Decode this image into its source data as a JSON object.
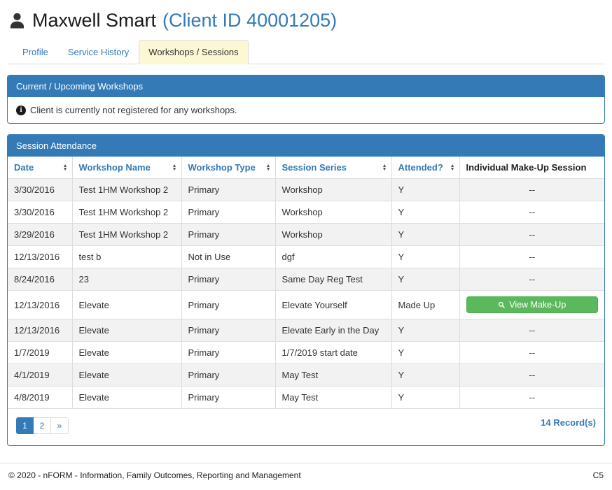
{
  "header": {
    "name": "Maxwell Smart",
    "client_id": "(Client ID 40001205)"
  },
  "tabs": [
    {
      "label": "Profile",
      "active": false
    },
    {
      "label": "Service History",
      "active": false
    },
    {
      "label": "Workshops / Sessions",
      "active": true
    }
  ],
  "workshops_panel": {
    "title": "Current / Upcoming Workshops",
    "message": "Client is currently not registered for any workshops."
  },
  "attendance_panel": {
    "title": "Session Attendance",
    "columns": [
      {
        "label": "Date",
        "sortable": true
      },
      {
        "label": "Workshop Name",
        "sortable": true
      },
      {
        "label": "Workshop Type",
        "sortable": true
      },
      {
        "label": "Session Series",
        "sortable": true
      },
      {
        "label": "Attended?",
        "sortable": true
      },
      {
        "label": "Individual Make-Up Session",
        "sortable": false
      }
    ],
    "rows": [
      {
        "date": "3/30/2016",
        "workshop_name": "Test 1HM Workshop 2",
        "workshop_type": "Primary",
        "session_series": "Workshop",
        "attended": "Y",
        "makeup": "--"
      },
      {
        "date": "3/30/2016",
        "workshop_name": "Test 1HM Workshop 2",
        "workshop_type": "Primary",
        "session_series": "Workshop",
        "attended": "Y",
        "makeup": "--"
      },
      {
        "date": "3/29/2016",
        "workshop_name": "Test 1HM Workshop 2",
        "workshop_type": "Primary",
        "session_series": "Workshop",
        "attended": "Y",
        "makeup": "--"
      },
      {
        "date": "12/13/2016",
        "workshop_name": "test b",
        "workshop_type": "Not in Use",
        "session_series": "dgf",
        "attended": "Y",
        "makeup": "--"
      },
      {
        "date": "8/24/2016",
        "workshop_name": "23",
        "workshop_type": "Primary",
        "session_series": "Same Day Reg Test",
        "attended": "Y",
        "makeup": "--"
      },
      {
        "date": "12/13/2016",
        "workshop_name": "Elevate",
        "workshop_type": "Primary",
        "session_series": "Elevate Yourself",
        "attended": "Made Up",
        "makeup": "view"
      },
      {
        "date": "12/13/2016",
        "workshop_name": "Elevate",
        "workshop_type": "Primary",
        "session_series": "Elevate Early in the Day",
        "attended": "Y",
        "makeup": "--"
      },
      {
        "date": "1/7/2019",
        "workshop_name": "Elevate",
        "workshop_type": "Primary",
        "session_series": "1/7/2019 start date",
        "attended": "Y",
        "makeup": "--"
      },
      {
        "date": "4/1/2019",
        "workshop_name": "Elevate",
        "workshop_type": "Primary",
        "session_series": "May Test",
        "attended": "Y",
        "makeup": "--"
      },
      {
        "date": "4/8/2019",
        "workshop_name": "Elevate",
        "workshop_type": "Primary",
        "session_series": "May Test",
        "attended": "Y",
        "makeup": "--"
      }
    ],
    "view_makeup_label": "View Make-Up",
    "pagination": {
      "pages": [
        {
          "label": "1",
          "active": true
        },
        {
          "label": "2",
          "active": false
        },
        {
          "label": "»",
          "active": false
        }
      ],
      "records": "14 Record(s)"
    }
  },
  "footer": {
    "copyright": "© 2020 - nFORM - Information, Family Outcomes, Reporting and Management",
    "code": "C5"
  },
  "colors": {
    "panel_blue": "#337ab7",
    "link_blue": "#337ab7",
    "active_tab_bg": "#fcf8d3",
    "button_green": "#5cb85c",
    "stripe_gray": "#f2f2f2"
  }
}
